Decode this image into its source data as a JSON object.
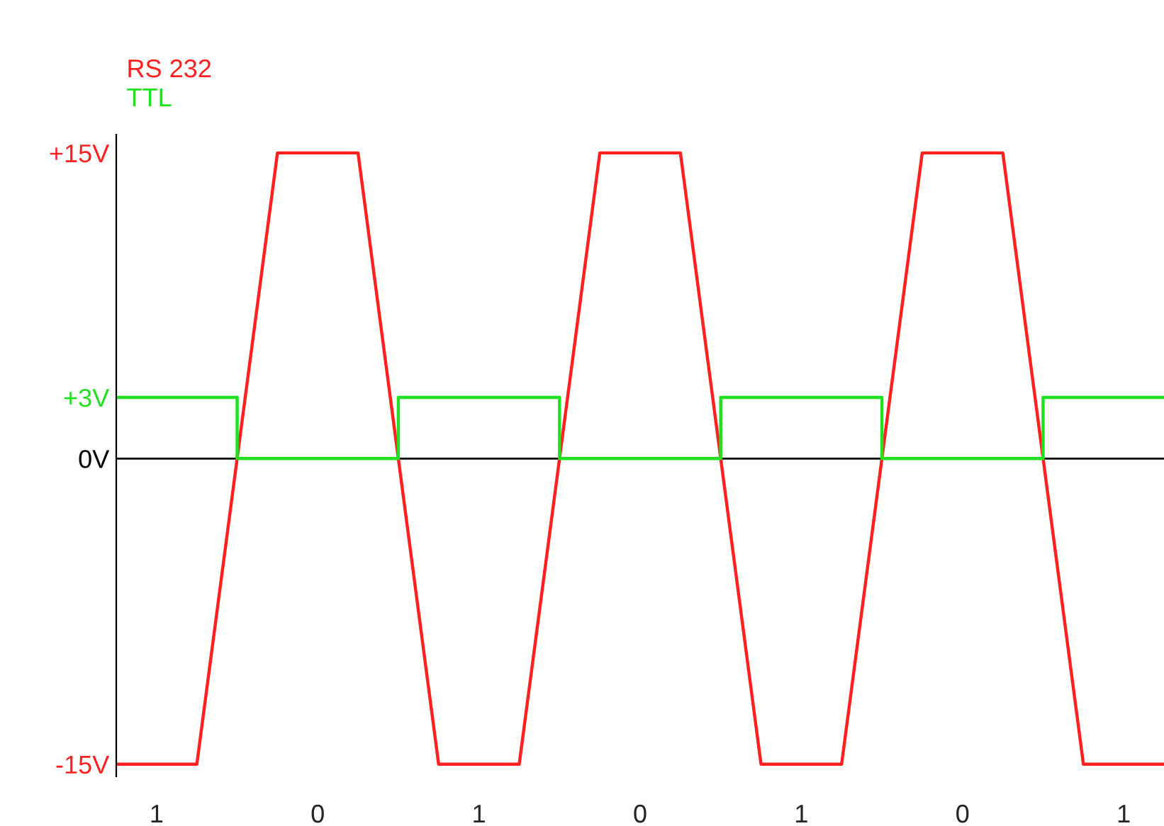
{
  "chart_data": {
    "type": "line",
    "categories": [
      null,
      "1",
      null,
      null,
      null,
      "0",
      null,
      null,
      null,
      "1",
      null,
      null,
      null,
      "0",
      null,
      null,
      null,
      "1",
      null,
      null,
      null,
      "0",
      null,
      null,
      null,
      "1",
      null
    ],
    "series": [
      {
        "name": "RS 232",
        "color": "#ff2020",
        "values": [
          -15,
          -15,
          -15,
          0,
          15,
          15,
          15,
          0,
          -15,
          -15,
          -15,
          0,
          15,
          15,
          15,
          0,
          -15,
          -15,
          -15,
          0,
          15,
          15,
          15,
          0,
          -15,
          -15,
          -15
        ]
      },
      {
        "name": "TTL",
        "color": "#20e020",
        "type": "step",
        "values": [
          3,
          3,
          3,
          0,
          0,
          0,
          0,
          3,
          3,
          3,
          3,
          0,
          0,
          0,
          0,
          3,
          3,
          3,
          3,
          0,
          0,
          0,
          0,
          3,
          3,
          3,
          3
        ]
      }
    ],
    "ylim": [
      -15.6,
      15.9
    ],
    "yticks": [
      {
        "value": -15,
        "label": "-15V"
      },
      {
        "value": 0,
        "label": "0V"
      },
      {
        "value": 3,
        "label": "+3V"
      },
      {
        "value": 15,
        "label": "+15V"
      }
    ],
    "ref_lines": [
      {
        "axis": "y",
        "value": 0,
        "color": "#000000"
      }
    ],
    "legend": "top left",
    "grid": false
  }
}
